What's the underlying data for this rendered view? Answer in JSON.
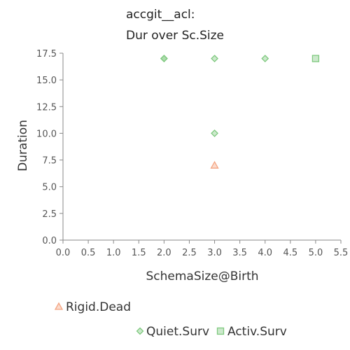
{
  "chart_data": {
    "type": "scatter",
    "title_lines": [
      "accgit__acl:",
      "Dur over Sc.Size"
    ],
    "xlabel": "SchemaSize@Birth",
    "ylabel": "Duration",
    "xlim": [
      0.0,
      5.5
    ],
    "ylim": [
      0.0,
      17.5
    ],
    "x_ticks": [
      "0.0",
      "0.5",
      "1.0",
      "1.5",
      "2.0",
      "2.5",
      "3.0",
      "3.5",
      "4.0",
      "4.5",
      "5.0",
      "5.5"
    ],
    "y_ticks": [
      "0.0",
      "2.5",
      "5.0",
      "7.5",
      "10.0",
      "12.5",
      "15.0",
      "17.5"
    ],
    "grid": false,
    "legend_position": "bottom",
    "series": [
      {
        "name": "Rigid.Dead",
        "marker": "triangle",
        "color": "#f4a582",
        "points": [
          {
            "x": 3,
            "y": 7
          }
        ]
      },
      {
        "name": "Quiet.Surv",
        "marker": "diamond",
        "color": "#7fc97f",
        "points": [
          {
            "x": 2,
            "y": 17
          },
          {
            "x": 2,
            "y": 17
          },
          {
            "x": 3,
            "y": 17
          },
          {
            "x": 4,
            "y": 17
          },
          {
            "x": 3,
            "y": 10
          }
        ]
      },
      {
        "name": "Activ.Surv",
        "marker": "square",
        "color": "#7fc97f",
        "points": [
          {
            "x": 5,
            "y": 17
          }
        ]
      }
    ]
  }
}
